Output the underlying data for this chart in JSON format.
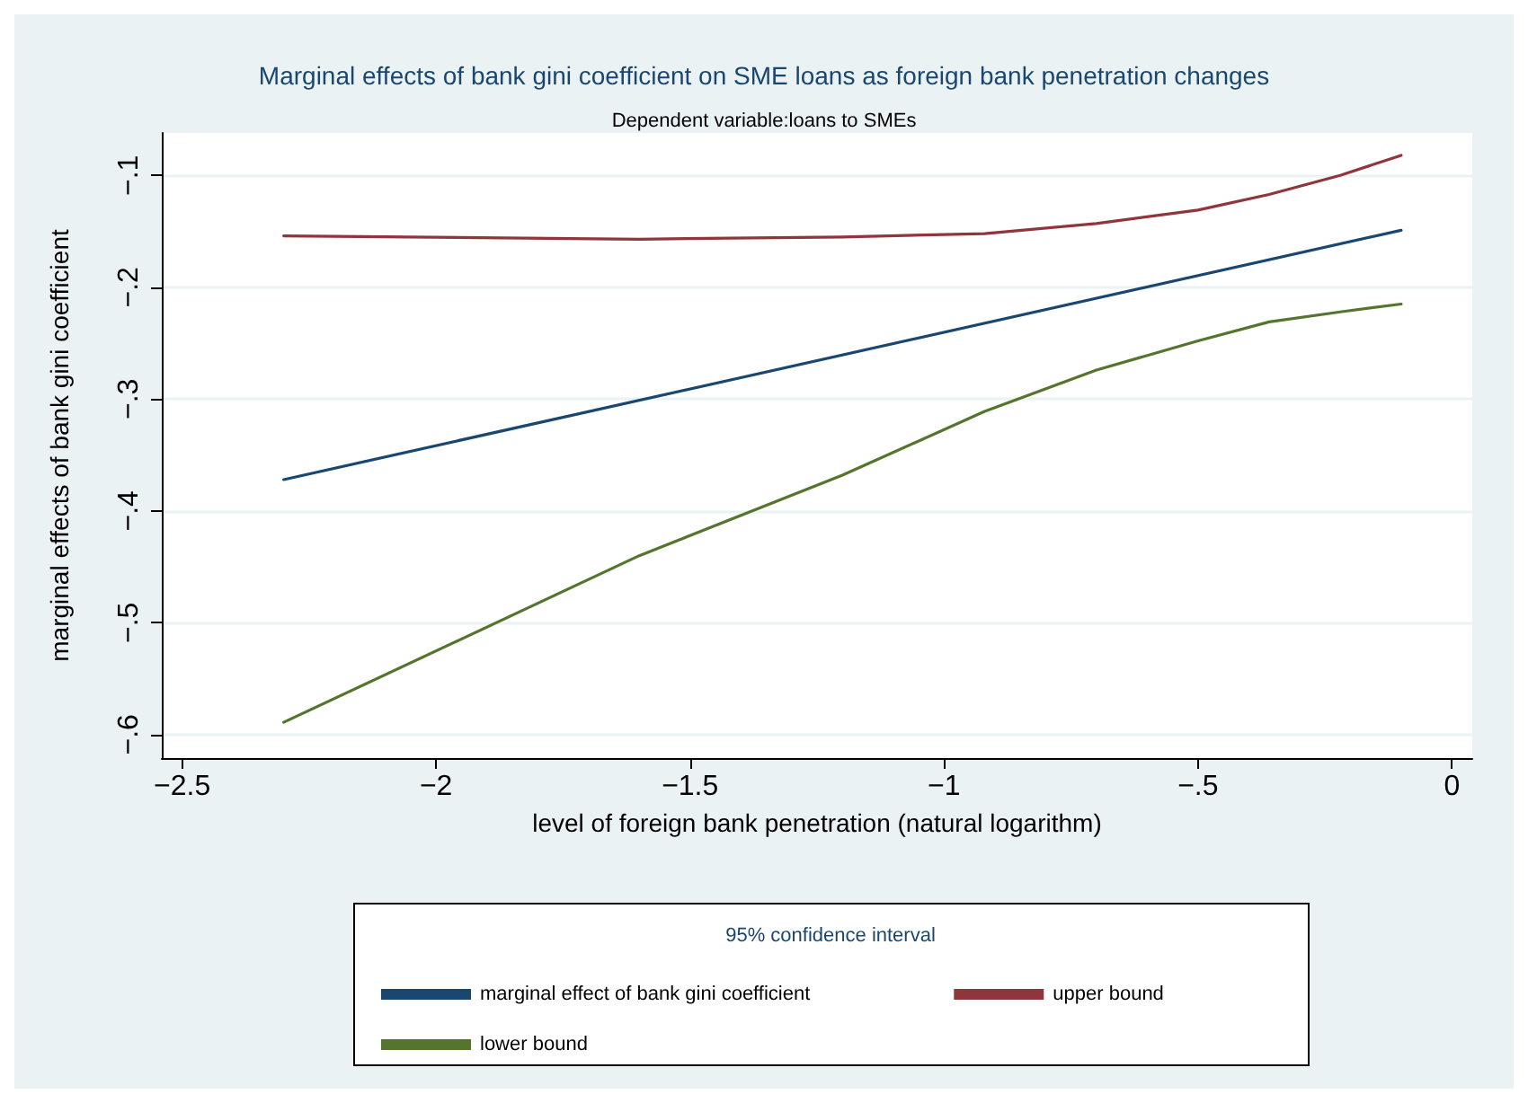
{
  "chart_data": {
    "type": "line",
    "title": "Marginal effects of bank gini coefficient on SME loans as foreign bank penetration changes",
    "subtitle": "Dependent variable:loans to SMEs",
    "xlabel": "level of foreign bank penetration (natural logarithm)",
    "ylabel": "marginal effects of bank gini coefficient",
    "legend_title": "95% confidence interval",
    "series": [
      {
        "name": "marginal effect of bank gini coefficient",
        "color": "#1a476f",
        "x": [
          -2.3,
          -0.1
        ],
        "values": [
          -0.372,
          -0.149
        ]
      },
      {
        "name": "upper bound",
        "color": "#90353b",
        "x": [
          -2.3,
          -1.6,
          -1.2,
          -0.92,
          -0.7,
          -0.5,
          -0.36,
          -0.22,
          -0.1
        ],
        "values": [
          -0.154,
          -0.157,
          -0.155,
          -0.152,
          -0.143,
          -0.131,
          -0.117,
          -0.1,
          -0.082
        ]
      },
      {
        "name": "lower bound",
        "color": "#55752f",
        "x": [
          -2.3,
          -1.6,
          -1.2,
          -0.92,
          -0.7,
          -0.5,
          -0.36,
          -0.22,
          -0.1
        ],
        "values": [
          -0.589,
          -0.44,
          -0.368,
          -0.311,
          -0.274,
          -0.248,
          -0.231,
          -0.222,
          -0.215
        ]
      }
    ],
    "xlim": [
      -2.54,
      0.04
    ],
    "ylim": [
      -0.621,
      -0.062
    ],
    "xticks": [
      {
        "value": -2.5,
        "label": "−2.5"
      },
      {
        "value": -2,
        "label": "−2"
      },
      {
        "value": -1.5,
        "label": "−1.5"
      },
      {
        "value": -1,
        "label": "−1"
      },
      {
        "value": -0.5,
        "label": "−.5"
      },
      0
    ],
    "yticks": [
      {
        "value": -0.6,
        "label": "−.6"
      },
      {
        "value": -0.5,
        "label": "−.5"
      },
      {
        "value": -0.4,
        "label": "−.4"
      },
      {
        "value": -0.3,
        "label": "−.3"
      },
      {
        "value": -0.2,
        "label": "−.2"
      },
      {
        "value": -0.1,
        "label": "−.1"
      }
    ],
    "grid": "y",
    "legend": "bottom",
    "marker": "none",
    "line_style": "solid"
  }
}
